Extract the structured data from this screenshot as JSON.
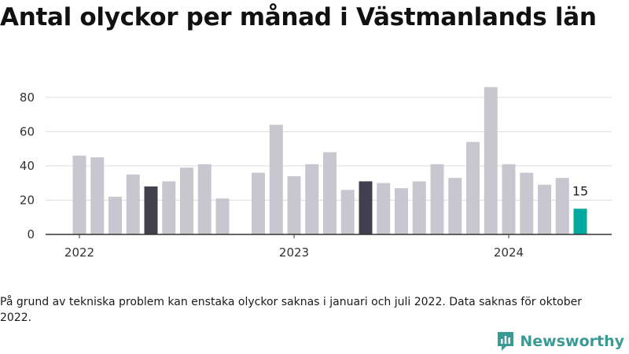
{
  "title": "Antal olyckor per månad i Västmanlands län",
  "footnote": "På grund av tekniska problem kan enstaka olyckor saknas i januari och juli 2022. Data saknas för oktober 2022.",
  "brand": {
    "name": "Newsworthy",
    "icon": "newsworthy-logo-icon",
    "color": "#3a9b95"
  },
  "chart_data": {
    "type": "bar",
    "title": "Antal olyckor per månad i Västmanlands län",
    "xlabel": "",
    "ylabel": "",
    "ylim": [
      0,
      90
    ],
    "yticks": [
      0,
      20,
      40,
      60,
      80
    ],
    "grid": true,
    "xtick_labels": [
      {
        "label": "2022",
        "category": "2022-01"
      },
      {
        "label": "2023",
        "category": "2023-01"
      },
      {
        "label": "2024",
        "category": "2024-01"
      }
    ],
    "categories": [
      "2022-01",
      "2022-02",
      "2022-03",
      "2022-04",
      "2022-05",
      "2022-06",
      "2022-07",
      "2022-08",
      "2022-09",
      "2022-10",
      "2022-11",
      "2022-12",
      "2023-01",
      "2023-02",
      "2023-03",
      "2023-04",
      "2023-05",
      "2023-06",
      "2023-07",
      "2023-08",
      "2023-09",
      "2023-10",
      "2023-11",
      "2023-12",
      "2024-01",
      "2024-02",
      "2024-03",
      "2024-04",
      "2024-05"
    ],
    "values": [
      46,
      45,
      22,
      35,
      28,
      31,
      39,
      41,
      21,
      null,
      36,
      64,
      34,
      41,
      48,
      26,
      31,
      30,
      27,
      31,
      41,
      33,
      54,
      86,
      41,
      36,
      29,
      33,
      15
    ],
    "bar_colors": [
      "#c8c7d0",
      "#c8c7d0",
      "#c8c7d0",
      "#c8c7d0",
      "#41404f",
      "#c8c7d0",
      "#c8c7d0",
      "#c8c7d0",
      "#c8c7d0",
      "#c8c7d0",
      "#c8c7d0",
      "#c8c7d0",
      "#c8c7d0",
      "#c8c7d0",
      "#c8c7d0",
      "#c8c7d0",
      "#41404f",
      "#c8c7d0",
      "#c8c7d0",
      "#c8c7d0",
      "#c8c7d0",
      "#c8c7d0",
      "#c8c7d0",
      "#c8c7d0",
      "#c8c7d0",
      "#c8c7d0",
      "#c8c7d0",
      "#c8c7d0",
      "#00a99d"
    ],
    "data_labels": [
      {
        "category": "2024-05",
        "text": "15"
      }
    ],
    "colors": {
      "bar": "#c8c7d0",
      "highlight": "#41404f",
      "latest": "#00a99d",
      "grid": "#dddddd",
      "axis": "#333333"
    }
  }
}
